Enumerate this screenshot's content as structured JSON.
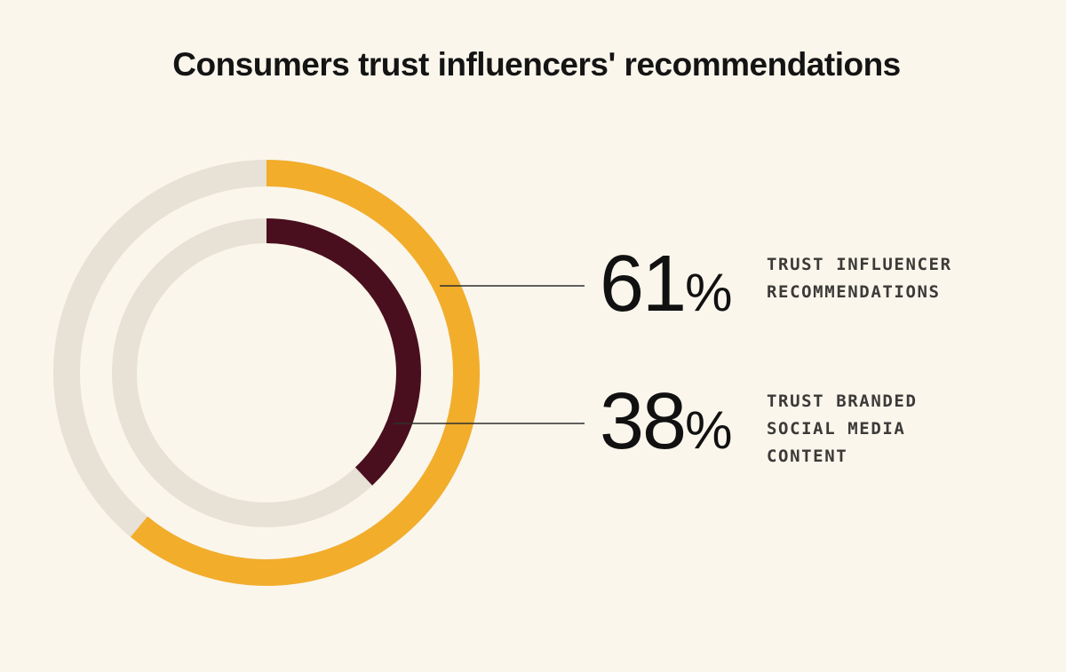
{
  "chart_data": {
    "type": "pie",
    "title": "Consumers trust influencers' recommendations",
    "series": [
      {
        "value": 61,
        "display": "61",
        "unit": "%",
        "label_lines": [
          "TRUST INFLUENCER",
          "RECOMMENDATIONS"
        ],
        "ring": "outer",
        "color": "#f2ad2b"
      },
      {
        "value": 38,
        "display": "38",
        "unit": "%",
        "label_lines": [
          "TRUST BRANDED",
          "SOCIAL MEDIA",
          "CONTENT"
        ],
        "ring": "inner",
        "color": "#4a0f1e"
      }
    ],
    "track_color": "#e7e1d6",
    "leader_color": "#2e2e2e",
    "max": 100
  },
  "colors": {
    "background": "#faf6ec",
    "title": "#141414"
  }
}
